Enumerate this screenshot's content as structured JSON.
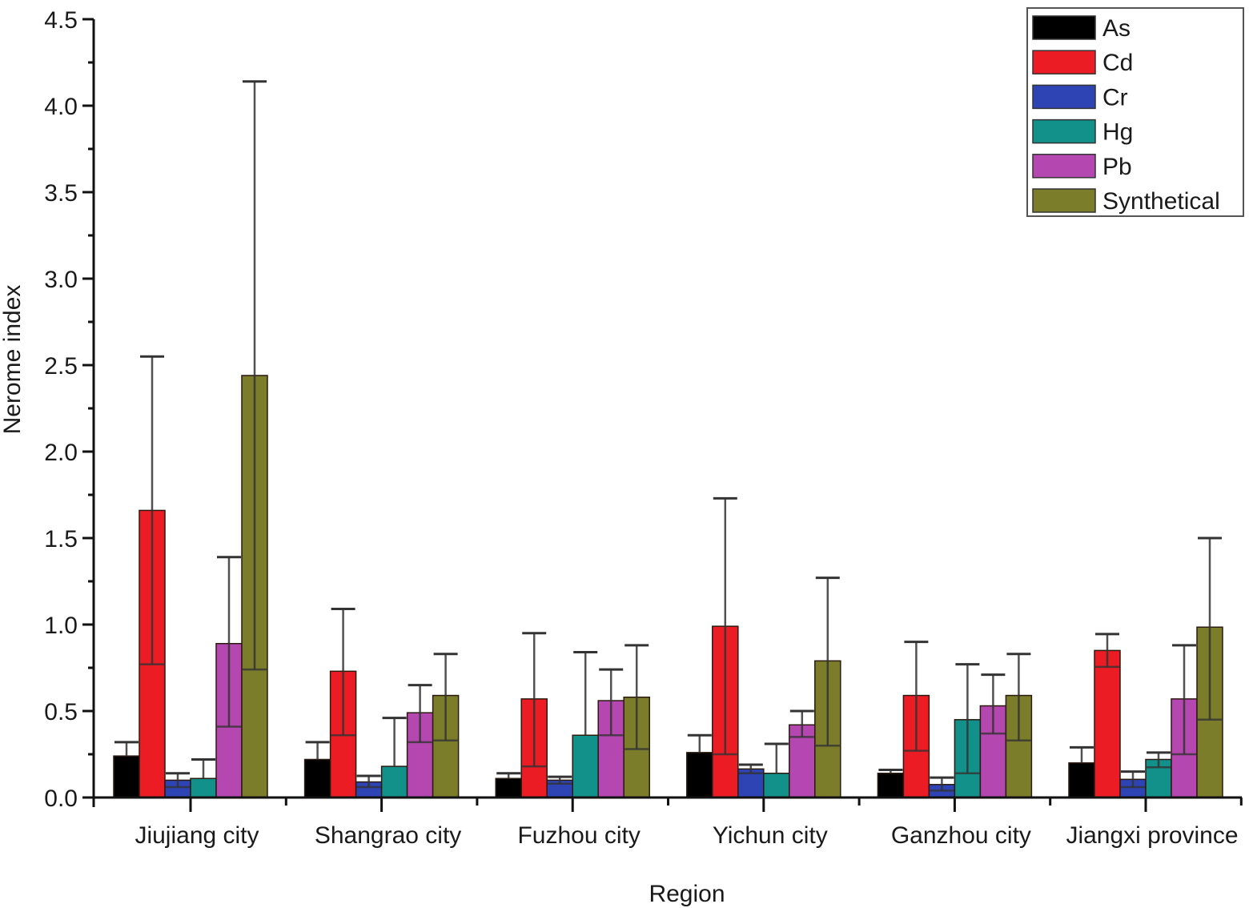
{
  "chart_data": {
    "type": "bar",
    "title": "",
    "xlabel": "Region",
    "ylabel": "Nerome index",
    "ylim": [
      0,
      4.5
    ],
    "yticks": [
      "0.0",
      "0.5",
      "1.0",
      "1.5",
      "2.0",
      "2.5",
      "3.0",
      "3.5",
      "4.0",
      "4.5"
    ],
    "ytick_values": [
      0,
      0.5,
      1.0,
      1.5,
      2.0,
      2.5,
      3.0,
      3.5,
      4.0,
      4.5
    ],
    "grid": false,
    "legend_position": "top-right",
    "categories": [
      "Jiujiang city",
      "Shangrao city",
      "Fuzhou city",
      "Yichun city",
      "Ganzhou city",
      "Jiangxi province"
    ],
    "series": [
      {
        "name": "As",
        "color": "#000000",
        "values": [
          0.24,
          0.22,
          0.11,
          0.26,
          0.14,
          0.2
        ],
        "err_upper": [
          0.32,
          0.32,
          0.14,
          0.36,
          0.16,
          0.29
        ],
        "err_lower": [
          null,
          null,
          null,
          null,
          null,
          null
        ]
      },
      {
        "name": "Cd",
        "color": "#ec1c24",
        "values": [
          1.66,
          0.73,
          0.57,
          0.99,
          0.59,
          0.85
        ],
        "err_upper": [
          2.55,
          1.09,
          0.95,
          1.73,
          0.9,
          0.945
        ],
        "err_lower": [
          0.77,
          0.36,
          0.18,
          0.25,
          0.27,
          0.755
        ]
      },
      {
        "name": "Cr",
        "color": "#2e44b4",
        "values": [
          0.1,
          0.09,
          0.1,
          0.165,
          0.075,
          0.105
        ],
        "err_upper": [
          0.14,
          0.125,
          0.12,
          0.19,
          0.115,
          0.15
        ],
        "err_lower": [
          0.06,
          0.06,
          0.08,
          0.14,
          0.04,
          0.06
        ]
      },
      {
        "name": "Hg",
        "color": "#12908a",
        "values": [
          0.11,
          0.18,
          0.36,
          0.14,
          0.45,
          0.22
        ],
        "err_upper": [
          0.22,
          0.46,
          0.84,
          0.31,
          0.77,
          0.26
        ],
        "err_lower": [
          null,
          null,
          null,
          null,
          0.14,
          0.175
        ]
      },
      {
        "name": "Pb",
        "color": "#b548b0",
        "values": [
          0.89,
          0.49,
          0.56,
          0.42,
          0.53,
          0.57
        ],
        "err_upper": [
          1.39,
          0.65,
          0.74,
          0.5,
          0.71,
          0.88
        ],
        "err_lower": [
          0.41,
          0.32,
          0.36,
          0.35,
          0.37,
          0.25
        ]
      },
      {
        "name": "Synthetical",
        "color": "#7b7d2a",
        "values": [
          2.44,
          0.59,
          0.58,
          0.79,
          0.59,
          0.985
        ],
        "err_upper": [
          4.14,
          0.83,
          0.88,
          1.27,
          0.83,
          1.5
        ],
        "err_lower": [
          0.74,
          0.33,
          0.28,
          0.3,
          0.33,
          0.45
        ]
      }
    ]
  }
}
